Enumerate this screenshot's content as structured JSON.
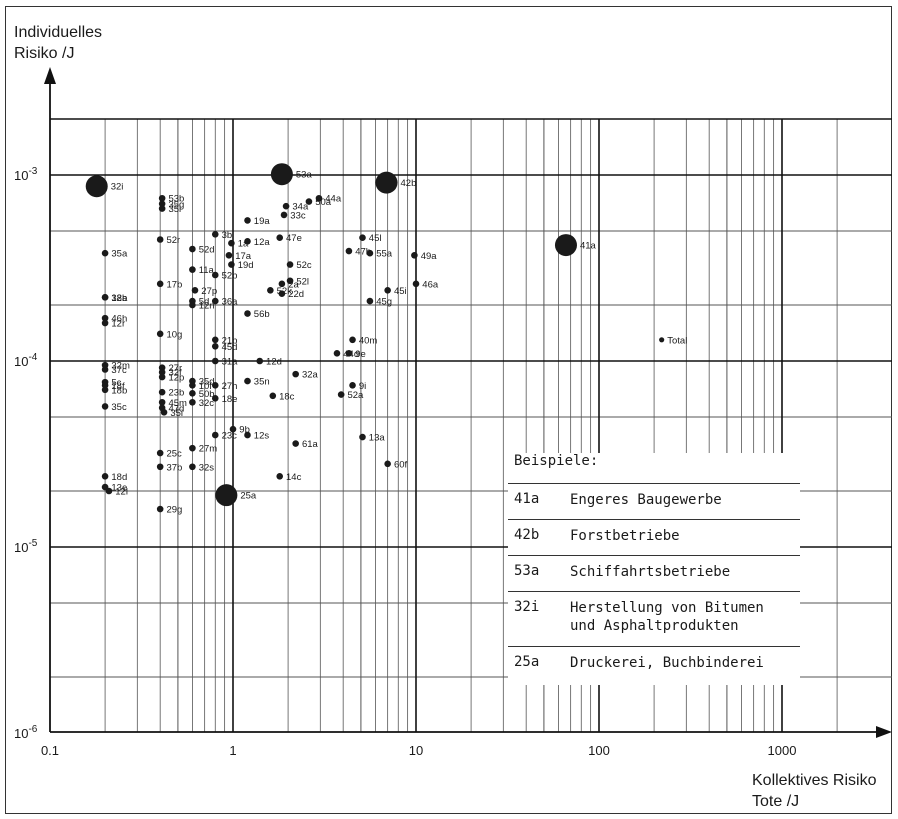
{
  "chart_data": {
    "type": "scatter",
    "ylabel": "Individuelles\nRisiko /J",
    "xlabel": "Kollektives Risiko\nTote /J",
    "x_scale": "log",
    "y_scale": "log",
    "xlim": [
      0.1,
      2000
    ],
    "ylim": [
      1e-06,
      0.0022
    ],
    "x_ticks": [
      {
        "value": 0.1,
        "label": "0.1"
      },
      {
        "value": 1,
        "label": "1"
      },
      {
        "value": 10,
        "label": "10"
      },
      {
        "value": 100,
        "label": "100"
      },
      {
        "value": 1000,
        "label": "1000"
      }
    ],
    "y_ticks": [
      {
        "value": 1e-06,
        "base": "10",
        "exp": "-6"
      },
      {
        "value": 1e-05,
        "base": "10",
        "exp": "-5"
      },
      {
        "value": 0.0001,
        "base": "10",
        "exp": "-4"
      },
      {
        "value": 0.001,
        "base": "10",
        "exp": "-3"
      }
    ],
    "grid": true,
    "legend_position": "bottom-right",
    "legend": {
      "title": "Beispiele:",
      "entries": [
        {
          "code": "41a",
          "text": "Engeres Baugewerbe"
        },
        {
          "code": "42b",
          "text": "Forstbetriebe"
        },
        {
          "code": "53a",
          "text": "Schiffahrtsbetriebe"
        },
        {
          "code": "32i",
          "text": "Herstellung von Bitumen\nund Asphaltprodukten"
        },
        {
          "code": "25a",
          "text": "Druckerei, Buchbinderei"
        }
      ]
    },
    "points": [
      {
        "label": "32i",
        "x": 0.18,
        "y": 0.00087,
        "size": "large"
      },
      {
        "label": "53a",
        "x": 1.85,
        "y": 0.00101,
        "size": "large"
      },
      {
        "label": "42b",
        "x": 6.9,
        "y": 0.00091,
        "size": "large"
      },
      {
        "label": "41a",
        "x": 66,
        "y": 0.00042,
        "size": "large"
      },
      {
        "label": "25a",
        "x": 0.92,
        "y": 1.9e-05,
        "size": "large"
      },
      {
        "label": "53b",
        "x": 0.41,
        "y": 0.00075
      },
      {
        "label": "35g",
        "x": 0.41,
        "y": 0.0007
      },
      {
        "label": "35l",
        "x": 0.41,
        "y": 0.00066
      },
      {
        "label": "3b",
        "x": 0.8,
        "y": 0.00048
      },
      {
        "label": "1a",
        "x": 0.98,
        "y": 0.00043
      },
      {
        "label": "19a",
        "x": 1.2,
        "y": 0.00057
      },
      {
        "label": "34a",
        "x": 1.95,
        "y": 0.00068
      },
      {
        "label": "33c",
        "x": 1.9,
        "y": 0.00061
      },
      {
        "label": "50a",
        "x": 2.6,
        "y": 0.00072
      },
      {
        "label": "44a",
        "x": 2.95,
        "y": 0.00075
      },
      {
        "label": "52r",
        "x": 0.4,
        "y": 0.00045
      },
      {
        "label": "52d",
        "x": 0.6,
        "y": 0.0004
      },
      {
        "label": "12a",
        "x": 1.2,
        "y": 0.00044
      },
      {
        "label": "47e",
        "x": 1.8,
        "y": 0.00046
      },
      {
        "label": "45l",
        "x": 5.1,
        "y": 0.00046
      },
      {
        "label": "35a",
        "x": 0.2,
        "y": 0.00038
      },
      {
        "label": "17a",
        "x": 0.95,
        "y": 0.00037
      },
      {
        "label": "19d",
        "x": 0.98,
        "y": 0.00033
      },
      {
        "label": "47b",
        "x": 4.3,
        "y": 0.00039
      },
      {
        "label": "55a",
        "x": 5.6,
        "y": 0.00038
      },
      {
        "label": "49a",
        "x": 9.8,
        "y": 0.00037
      },
      {
        "label": "52c",
        "x": 2.05,
        "y": 0.00033
      },
      {
        "label": "11a",
        "x": 0.6,
        "y": 0.00031
      },
      {
        "label": "17b",
        "x": 0.4,
        "y": 0.00026
      },
      {
        "label": "52b",
        "x": 0.8,
        "y": 0.00029
      },
      {
        "label": "27p",
        "x": 0.62,
        "y": 0.00024
      },
      {
        "label": "2a",
        "x": 1.85,
        "y": 0.00026
      },
      {
        "label": "52k",
        "x": 1.6,
        "y": 0.00024
      },
      {
        "label": "52l",
        "x": 2.05,
        "y": 0.00027
      },
      {
        "label": "22d",
        "x": 1.85,
        "y": 0.00023
      },
      {
        "label": "46a",
        "x": 10,
        "y": 0.00026
      },
      {
        "label": "45i",
        "x": 7,
        "y": 0.00024
      },
      {
        "label": "45g",
        "x": 5.6,
        "y": 0.00021
      },
      {
        "label": "38a",
        "x": 0.2,
        "y": 0.00022
      },
      {
        "label": "12b",
        "x": 0.2,
        "y": 0.00022
      },
      {
        "label": "5d",
        "x": 0.6,
        "y": 0.00021
      },
      {
        "label": "12n",
        "x": 0.6,
        "y": 0.0002
      },
      {
        "label": "36a",
        "x": 0.8,
        "y": 0.00021
      },
      {
        "label": "56b",
        "x": 1.2,
        "y": 0.00018
      },
      {
        "label": "46h",
        "x": 0.2,
        "y": 0.00017
      },
      {
        "label": "12r",
        "x": 0.2,
        "y": 0.00016
      },
      {
        "label": "10g",
        "x": 0.4,
        "y": 0.00014
      },
      {
        "label": "21b",
        "x": 0.8,
        "y": 0.00013
      },
      {
        "label": "40m",
        "x": 4.5,
        "y": 0.00013
      },
      {
        "label": "45d",
        "x": 0.8,
        "y": 0.00012
      },
      {
        "label": "44d",
        "x": 3.7,
        "y": 0.00011
      },
      {
        "label": "9e",
        "x": 4.3,
        "y": 0.00011
      },
      {
        "label": "Total",
        "x": 220,
        "y": 0.00013,
        "size": "small"
      },
      {
        "label": "31a",
        "x": 0.8,
        "y": 0.0001
      },
      {
        "label": "12d",
        "x": 1.4,
        "y": 0.0001
      },
      {
        "label": "32m",
        "x": 0.2,
        "y": 9.5e-05
      },
      {
        "label": "37c",
        "x": 0.2,
        "y": 9e-05
      },
      {
        "label": "27r",
        "x": 0.41,
        "y": 9.2e-05
      },
      {
        "label": "32f",
        "x": 0.41,
        "y": 8.7e-05
      },
      {
        "label": "12p",
        "x": 0.41,
        "y": 8.2e-05
      },
      {
        "label": "35d",
        "x": 0.6,
        "y": 7.8e-05
      },
      {
        "label": "10f",
        "x": 0.6,
        "y": 7.4e-05
      },
      {
        "label": "5c",
        "x": 0.2,
        "y": 7.7e-05
      },
      {
        "label": "18f",
        "x": 0.2,
        "y": 7.4e-05
      },
      {
        "label": "18b",
        "x": 0.2,
        "y": 7e-05
      },
      {
        "label": "32a",
        "x": 2.2,
        "y": 8.5e-05
      },
      {
        "label": "27h",
        "x": 0.8,
        "y": 7.4e-05
      },
      {
        "label": "35n",
        "x": 1.2,
        "y": 7.8e-05
      },
      {
        "label": "9i",
        "x": 4.5,
        "y": 7.4e-05
      },
      {
        "label": "23b",
        "x": 0.41,
        "y": 6.8e-05
      },
      {
        "label": "50b",
        "x": 0.6,
        "y": 6.7e-05
      },
      {
        "label": "18e",
        "x": 0.8,
        "y": 6.3e-05
      },
      {
        "label": "18c",
        "x": 1.65,
        "y": 6.5e-05
      },
      {
        "label": "52a",
        "x": 3.9,
        "y": 6.6e-05
      },
      {
        "label": "45m",
        "x": 0.41,
        "y": 6e-05
      },
      {
        "label": "35c",
        "x": 0.2,
        "y": 5.7e-05
      },
      {
        "label": "47d",
        "x": 0.41,
        "y": 5.6e-05
      },
      {
        "label": "32c",
        "x": 0.6,
        "y": 6e-05
      },
      {
        "label": "35i",
        "x": 0.42,
        "y": 5.3e-05
      },
      {
        "label": "23c",
        "x": 0.8,
        "y": 4e-05
      },
      {
        "label": "9b",
        "x": 1,
        "y": 4.3e-05
      },
      {
        "label": "12s",
        "x": 1.2,
        "y": 4e-05
      },
      {
        "label": "61a",
        "x": 2.2,
        "y": 3.6e-05
      },
      {
        "label": "13a",
        "x": 5.1,
        "y": 3.9e-05
      },
      {
        "label": "27m",
        "x": 0.6,
        "y": 3.4e-05
      },
      {
        "label": "25c",
        "x": 0.4,
        "y": 3.2e-05
      },
      {
        "label": "37b",
        "x": 0.4,
        "y": 2.7e-05
      },
      {
        "label": "32s",
        "x": 0.6,
        "y": 2.7e-05
      },
      {
        "label": "60f",
        "x": 7,
        "y": 2.8e-05
      },
      {
        "label": "14c",
        "x": 1.8,
        "y": 2.4e-05
      },
      {
        "label": "18d",
        "x": 0.2,
        "y": 2.4e-05
      },
      {
        "label": "13e",
        "x": 0.2,
        "y": 2.1e-05
      },
      {
        "label": "12l",
        "x": 0.21,
        "y": 2e-05
      },
      {
        "label": "29g",
        "x": 0.4,
        "y": 1.6e-05
      }
    ]
  }
}
